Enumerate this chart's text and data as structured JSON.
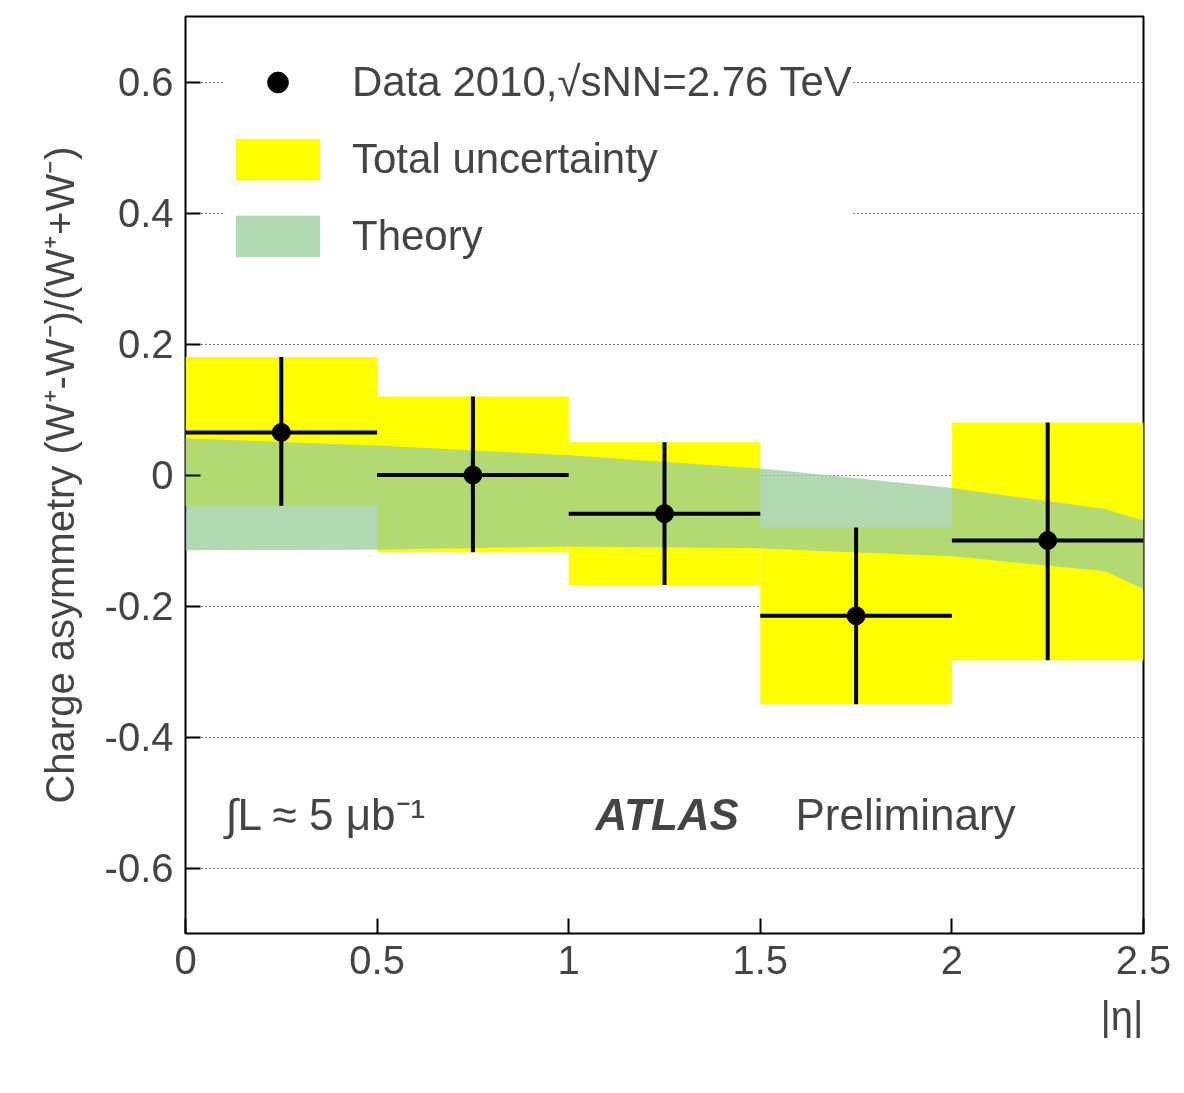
{
  "chart_data": {
    "type": "scatter",
    "xlabel": "|η|",
    "ylabel": "Charge asymmetry (W⁺-W⁻)/(W⁺+W⁻)",
    "series": [
      {
        "name": "Total uncertainty",
        "type": "bar",
        "color": "#ffff00",
        "x": [
          0.25,
          0.75,
          1.25,
          1.75,
          2.25
        ],
        "base": [
          -0.047,
          -0.118,
          -0.168,
          -0.35,
          -0.283
        ],
        "values": [
          0.227,
          0.238,
          0.218,
          0.27,
          0.363
        ]
      },
      {
        "name": "Theory",
        "type": "area",
        "color": "#99cc99",
        "x": [
          0,
          0.5,
          1,
          1.5,
          2,
          2.4,
          2.5
        ],
        "values": [
          null,
          null,
          null,
          null,
          null,
          null,
          null
        ],
        "lower": [
          -0.115,
          -0.114,
          -0.109,
          -0.112,
          -0.124,
          -0.147,
          -0.174
        ],
        "upper": [
          0.056,
          0.045,
          0.03,
          0.01,
          -0.02,
          -0.052,
          -0.07
        ]
      },
      {
        "name": "Data 2010,√sNN=2.76 TeV",
        "color": "#000000",
        "x": [
          0.25,
          0.75,
          1.25,
          1.75,
          2.25
        ],
        "values": [
          0.065,
          0.0,
          -0.059,
          -0.215,
          -0.1
        ],
        "errors": [
          [
            -0.047,
            0.18
          ],
          [
            -0.118,
            0.12
          ],
          [
            -0.168,
            0.05
          ],
          [
            -0.35,
            -0.08
          ],
          [
            -0.283,
            0.08
          ]
        ],
        "xerrors": [
          0.25,
          0.25,
          0.25,
          0.25,
          0.25
        ]
      }
    ],
    "xlim": [
      0,
      2.5
    ],
    "ylim": [
      -0.7,
      0.7
    ],
    "xticks": [
      0,
      0.5,
      1,
      1.5,
      2,
      2.5
    ],
    "yticks": [
      -0.6,
      -0.4,
      -0.2,
      0,
      0.2,
      0.4,
      0.6
    ],
    "grid": "y",
    "legend": "top left",
    "marker": "circle",
    "annotations": [
      "∫L ≈ 5 μb⁻¹",
      "ATLAS",
      "Preliminary"
    ]
  }
}
